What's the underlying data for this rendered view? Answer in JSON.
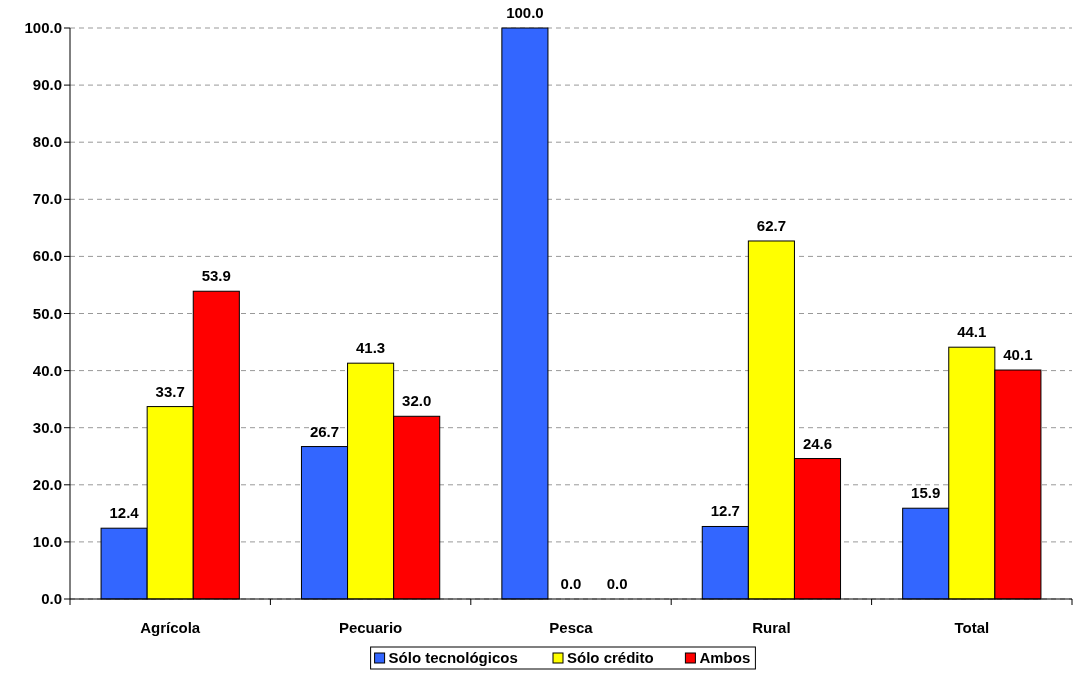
{
  "chart_data": {
    "type": "bar",
    "categories": [
      "Agrícola",
      "Pecuario",
      "Pesca",
      "Rural",
      "Total"
    ],
    "series": [
      {
        "name": "Sólo tecnológicos",
        "color": "#3366ff",
        "values": [
          12.4,
          26.7,
          100.0,
          12.7,
          15.9
        ]
      },
      {
        "name": "Sólo crédito",
        "color": "#ffff00",
        "values": [
          33.7,
          41.3,
          0.0,
          62.7,
          44.1
        ]
      },
      {
        "name": "Ambos",
        "color": "#ff0000",
        "values": [
          53.9,
          32.0,
          0.0,
          24.6,
          40.1
        ]
      }
    ],
    "ylim": [
      0,
      100
    ],
    "yticks": [
      {
        "value": 0,
        "label": "0.0"
      },
      {
        "value": 10,
        "label": "10.0"
      },
      {
        "value": 20,
        "label": "20.0"
      },
      {
        "value": 30,
        "label": "30.0"
      },
      {
        "value": 40,
        "label": "40.0"
      },
      {
        "value": 50,
        "label": "50.0"
      },
      {
        "value": 60,
        "label": "60.0"
      },
      {
        "value": 70,
        "label": "70.0"
      },
      {
        "value": 80,
        "label": "80.0"
      },
      {
        "value": 90,
        "label": "90.0"
      },
      {
        "value": 100,
        "label": "100.0"
      }
    ],
    "value_labels": [
      [
        "12.4",
        "26.7",
        "100.0",
        "12.7",
        "15.9"
      ],
      [
        "33.7",
        "41.3",
        "0.0",
        "62.7",
        "44.1"
      ],
      [
        "53.9",
        "32.0",
        "0.0",
        "24.6",
        "40.1"
      ]
    ],
    "grid": "y",
    "legend": "bottom"
  }
}
